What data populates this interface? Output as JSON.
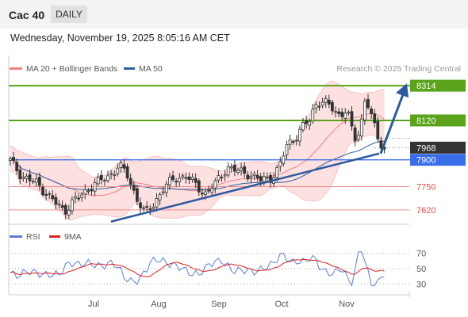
{
  "header": {
    "instrument": "Cac 40",
    "timeframe": "DAILY"
  },
  "datetime": "Wednesday, November 19, 2025 8:05:16 AM CET",
  "credit": "Research © 2025 Trading Central",
  "legend": {
    "ma20": "MA 20 + Bollinger Bands",
    "ma50": "MA 50",
    "rsi": "RSI",
    "rsi_ma": "9MA"
  },
  "colors": {
    "ma20": "#f08080",
    "band_fill": "#fde0e0",
    "ma50": "#2c5f9e",
    "green_level": "#5aa31b",
    "blue_level": "#3a6ee8",
    "red_level": "#e05050",
    "current_price": "#333333",
    "candle": "#333333",
    "trendline": "#2c5aa0",
    "rsi": "#5b7fd6",
    "rsi_ma": "#e02020"
  },
  "chart_data": [
    {
      "type": "candlestick",
      "title": "Cac 40",
      "x_ticks": [
        "Jul",
        "Aug",
        "Sep",
        "Oct",
        "Nov"
      ],
      "ylim": [
        7540,
        8350
      ],
      "levels": [
        {
          "value": 8314,
          "label": "8314",
          "kind": "resistance",
          "style": "green"
        },
        {
          "value": 8120,
          "label": "8120",
          "kind": "resistance",
          "style": "green"
        },
        {
          "value": 7968,
          "label": "7968",
          "kind": "last_price",
          "style": "dark"
        },
        {
          "value": 7900,
          "label": "7900",
          "kind": "pivot",
          "style": "blue"
        },
        {
          "value": 7750,
          "label": "7750",
          "kind": "support",
          "style": "red"
        },
        {
          "value": 7620,
          "label": "7620",
          "kind": "support",
          "style": "red"
        }
      ],
      "trend": "bullish — rising trendline from ~7555 (late Jun) to ~7935 (mid Nov); arrow projects toward 8314"
    },
    {
      "type": "line",
      "title": "RSI",
      "series": [
        {
          "name": "RSI"
        },
        {
          "name": "9MA"
        }
      ],
      "y_ticks": [
        70,
        50,
        30
      ],
      "ylim": [
        22,
        78
      ]
    }
  ]
}
